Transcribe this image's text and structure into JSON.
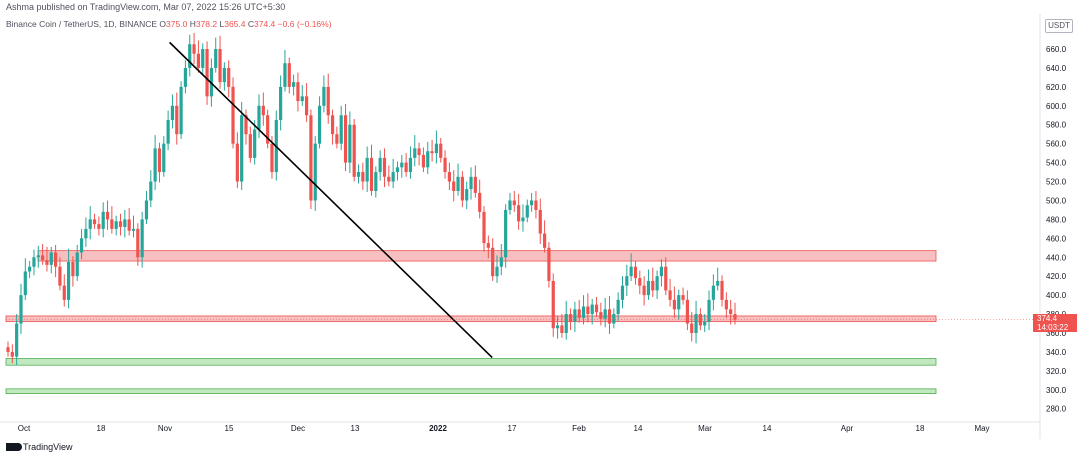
{
  "header": {
    "publisher": "Ashma published on TradingView.com, Mar 07, 2022 15:26 UTC+5:30"
  },
  "legend": {
    "symbol": "Binance Coin / TetherUS, 1D, BINANCE",
    "open_label": "O",
    "open": "375.0",
    "high_label": "H",
    "high": "378.2",
    "low_label": "L",
    "low": "365.4",
    "close_label": "C",
    "close": "374.4",
    "change": "−0.6 (−0.16%)"
  },
  "price_axis": {
    "currency": "USDT",
    "ticks": [
      "280.0",
      "300.0",
      "320.0",
      "340.0",
      "360.0",
      "380.0",
      "400.0",
      "420.0",
      "440.0",
      "460.0",
      "480.0",
      "500.0",
      "520.0",
      "540.0",
      "560.0",
      "580.0",
      "600.0",
      "620.0",
      "640.0",
      "660.0",
      "680.0"
    ],
    "current_price": "374.4",
    "countdown": "14:03:22"
  },
  "time_axis": {
    "ticks": [
      "Oct",
      "18",
      "Nov",
      "15",
      "Dec",
      "13",
      "2022",
      "17",
      "Feb",
      "14",
      "Mar",
      "14",
      "Apr",
      "18",
      "May"
    ]
  },
  "footer": {
    "brand": "TradingView"
  },
  "colors": {
    "up": "#26a69a",
    "down": "#ef5350",
    "resistance": "#f6b4b4",
    "support": "#b7e4b5",
    "trendline": "#000000"
  },
  "chart_data": {
    "type": "candlestick",
    "x_unit": "daily candles",
    "ylim": [
      275,
      690
    ],
    "trendline": {
      "from": {
        "date": "2021-11-21",
        "price": 667
      },
      "to": {
        "date": "2022-03-14",
        "price": 334
      }
    },
    "zones": [
      {
        "type": "resistance",
        "low": 436,
        "high": 447
      },
      {
        "type": "resistance",
        "low": 372,
        "high": 378
      },
      {
        "type": "support",
        "low": 326,
        "high": 333
      },
      {
        "type": "support",
        "low": 296,
        "high": 301
      }
    ],
    "closes": [
      340,
      335,
      370,
      400,
      425,
      430,
      440,
      442,
      437,
      432,
      445,
      430,
      410,
      395,
      435,
      420,
      445,
      460,
      470,
      480,
      475,
      470,
      488,
      480,
      470,
      478,
      472,
      480,
      468,
      470,
      440,
      480,
      500,
      520,
      555,
      530,
      560,
      585,
      600,
      570,
      620,
      640,
      665,
      655,
      640,
      660,
      610,
      640,
      660,
      625,
      640,
      620,
      560,
      520,
      590,
      570,
      545,
      575,
      600,
      590,
      560,
      530,
      585,
      620,
      645,
      620,
      625,
      605,
      610,
      590,
      500,
      560,
      600,
      620,
      590,
      570,
      560,
      590,
      540,
      580,
      525,
      530,
      520,
      545,
      510,
      530,
      545,
      525,
      520,
      530,
      535,
      540,
      530,
      545,
      555,
      548,
      535,
      552,
      550,
      560,
      545,
      530,
      520,
      510,
      525,
      500,
      512,
      525,
      508,
      488,
      455,
      450,
      420,
      430,
      440,
      490,
      500,
      495,
      478,
      482,
      495,
      500,
      490,
      465,
      450,
      415,
      365,
      368,
      360,
      380,
      372,
      385,
      376,
      388,
      380,
      390,
      382,
      375,
      385,
      370,
      380,
      395,
      410,
      420,
      430,
      418,
      410,
      400,
      415,
      405,
      420,
      430,
      405,
      395,
      385,
      400,
      395,
      370,
      360,
      380,
      368,
      372,
      395,
      410,
      415,
      395,
      385,
      380,
      374
    ]
  }
}
